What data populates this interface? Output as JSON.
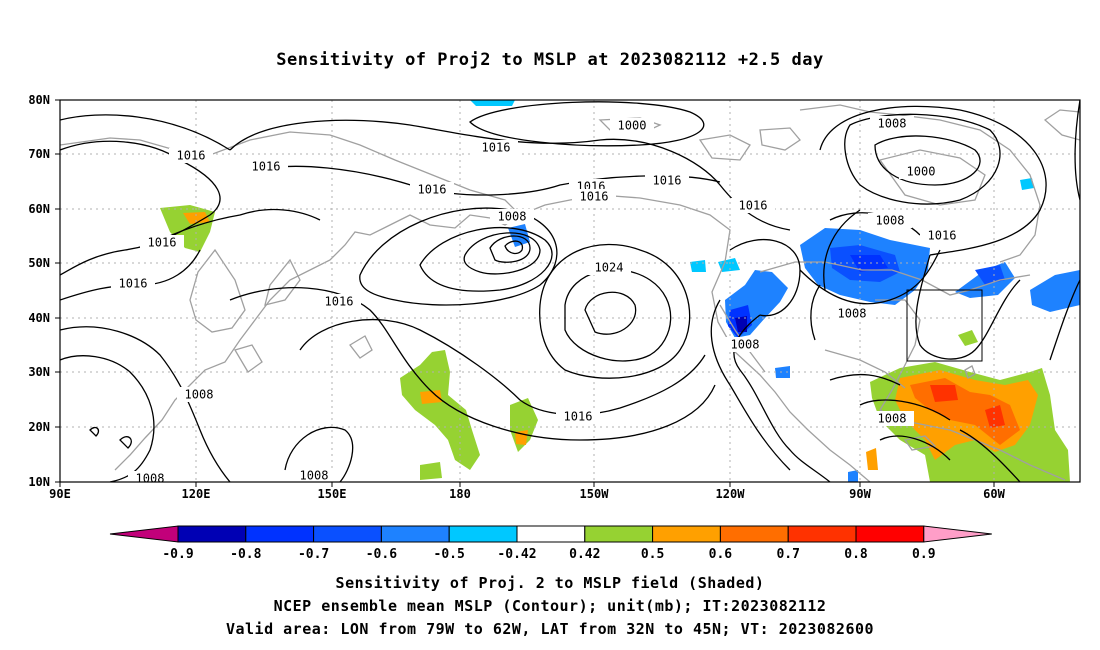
{
  "title": "Sensitivity of Proj2 to MSLP at 2023082112 +2.5 day",
  "lat_labels": [
    "80N",
    "70N",
    "60N",
    "50N",
    "40N",
    "30N",
    "20N",
    "10N"
  ],
  "lon_labels": [
    "90E",
    "120E",
    "150E",
    "180",
    "150W",
    "120W",
    "90W",
    "60W"
  ],
  "contour_labels": [
    "1000",
    "1008",
    "1016",
    "1016",
    "1016",
    "1016",
    "1016",
    "1016",
    "1016",
    "1016",
    "1008",
    "1024",
    "1016",
    "1016",
    "1008",
    "1016",
    "1008",
    "1016",
    "1008",
    "1008",
    "1008",
    "1008",
    "1000",
    "1008",
    "1016",
    "1008",
    "1016"
  ],
  "colorbar": {
    "labels": [
      "-0.9",
      "-0.8",
      "-0.7",
      "-0.6",
      "-0.5",
      "-0.42",
      "0.42",
      "0.5",
      "0.6",
      "0.7",
      "0.8",
      "0.9"
    ],
    "colors": [
      "#c2007a",
      "#0000b4",
      "#0032ff",
      "#0a50ff",
      "#1e82ff",
      "#00c8ff",
      "#ffffff",
      "#96d232",
      "#ffa000",
      "#ff6e00",
      "#ff3200",
      "#ff0000",
      "#ff9ec8"
    ]
  },
  "captions": [
    "Sensitivity of Proj. 2 to MSLP field (Shaded)",
    "NCEP ensemble mean MSLP (Contour); unit(mb); IT:2023082112",
    "Valid area: LON from 79W to 62W, LAT from 32N to 45N; VT: 2023082600"
  ]
}
